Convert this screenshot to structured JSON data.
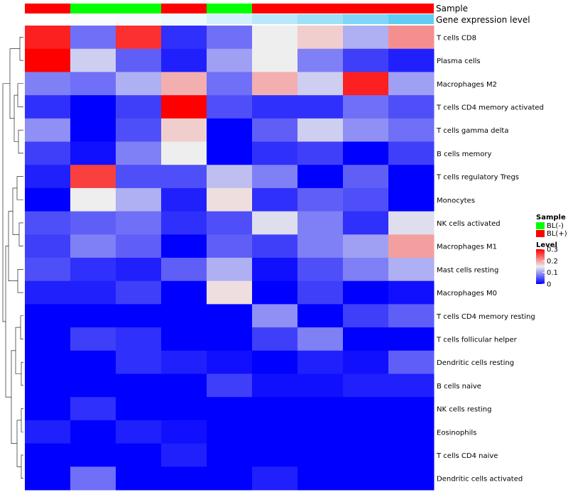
{
  "chart_data": {
    "type": "heatmap",
    "title": "",
    "annotation_rows": [
      {
        "name": "Sample",
        "label": "Sample"
      },
      {
        "name": "Gene expression level",
        "label": "Gene expression level"
      }
    ],
    "columns": [
      {
        "id": "S1",
        "sample": "BL(+)",
        "expression": 0.0
      },
      {
        "id": "S2",
        "sample": "BL(-)",
        "expression": 0.03
      },
      {
        "id": "S3",
        "sample": "BL(-)",
        "expression": 0.06
      },
      {
        "id": "S4",
        "sample": "BL(+)",
        "expression": 0.1
      },
      {
        "id": "S5",
        "sample": "BL(-)",
        "expression": 0.25
      },
      {
        "id": "S6",
        "sample": "BL(+)",
        "expression": 0.4
      },
      {
        "id": "S7",
        "sample": "BL(+)",
        "expression": 0.55
      },
      {
        "id": "S8",
        "sample": "BL(+)",
        "expression": 0.72
      },
      {
        "id": "S9",
        "sample": "BL(+)",
        "expression": 0.9
      }
    ],
    "rows": [
      "T cells CD8",
      "Plasma cells",
      "Macrophages M2",
      "T cells CD4 memory activated",
      "T cells gamma delta",
      "B cells memory",
      "T cells regulatory  Tregs",
      "Monocytes",
      "NK cells activated",
      "Macrophages M1",
      "Mast cells resting",
      "Macrophages M0",
      "T cells CD4 memory resting",
      "T cells follicular helper",
      "Dendritic cells resting",
      "B cells naive",
      "NK cells resting",
      "Eosinophils",
      "T cells CD4 naive",
      "Dendritic cells activated"
    ],
    "values": [
      [
        0.28,
        0.07,
        0.27,
        0.03,
        0.07,
        0.15,
        0.17,
        0.11,
        0.21
      ],
      [
        0.3,
        0.13,
        0.06,
        0.02,
        0.1,
        0.15,
        0.08,
        0.04,
        0.02
      ],
      [
        0.08,
        0.07,
        0.11,
        0.19,
        0.07,
        0.19,
        0.13,
        0.28,
        0.1
      ],
      [
        0.03,
        0.0,
        0.04,
        0.3,
        0.05,
        0.03,
        0.03,
        0.07,
        0.05
      ],
      [
        0.09,
        0.0,
        0.05,
        0.17,
        0.0,
        0.06,
        0.13,
        0.09,
        0.07
      ],
      [
        0.04,
        0.01,
        0.08,
        0.15,
        0.0,
        0.03,
        0.04,
        0.0,
        0.04
      ],
      [
        0.02,
        0.26,
        0.05,
        0.05,
        0.12,
        0.08,
        0.0,
        0.06,
        0.0
      ],
      [
        0.0,
        0.15,
        0.11,
        0.02,
        0.16,
        0.03,
        0.06,
        0.05,
        0.0
      ],
      [
        0.05,
        0.06,
        0.07,
        0.03,
        0.05,
        0.14,
        0.08,
        0.03,
        0.14
      ],
      [
        0.04,
        0.08,
        0.06,
        0.0,
        0.06,
        0.04,
        0.08,
        0.1,
        0.2
      ],
      [
        0.05,
        0.03,
        0.02,
        0.06,
        0.11,
        0.01,
        0.05,
        0.08,
        0.11
      ],
      [
        0.02,
        0.02,
        0.04,
        0.0,
        0.16,
        0.0,
        0.04,
        0.0,
        0.01
      ],
      [
        0.0,
        0.0,
        0.0,
        0.0,
        0.0,
        0.09,
        0.0,
        0.04,
        0.06
      ],
      [
        0.0,
        0.04,
        0.03,
        0.0,
        0.0,
        0.04,
        0.08,
        0.0,
        0.0
      ],
      [
        0.0,
        0.0,
        0.03,
        0.02,
        0.01,
        0.0,
        0.02,
        0.01,
        0.06
      ],
      [
        0.0,
        0.0,
        0.0,
        0.0,
        0.04,
        0.01,
        0.01,
        0.02,
        0.02
      ],
      [
        0.0,
        0.03,
        0.0,
        0.0,
        0.0,
        0.0,
        0.0,
        0.0,
        0.0
      ],
      [
        0.02,
        0.0,
        0.02,
        0.01,
        0.0,
        0.0,
        0.0,
        0.0,
        0.0
      ],
      [
        0.0,
        0.0,
        0.0,
        0.02,
        0.0,
        0.0,
        0.0,
        0.0,
        0.0
      ],
      [
        0.0,
        0.07,
        0.0,
        0.0,
        0.0,
        0.02,
        0.0,
        0.0,
        0.0
      ]
    ],
    "color_scale": {
      "min": 0,
      "max": 0.3,
      "stops": [
        {
          "value": 0.0,
          "color": "#0000ff"
        },
        {
          "value": 0.15,
          "color": "#eeeeee"
        },
        {
          "value": 0.3,
          "color": "#ff0000"
        }
      ]
    },
    "sample_colors": {
      "BL(-)": "#00ff00",
      "BL(+)": "#ff0000"
    },
    "expression_colors": {
      "low": "#ffffff",
      "high": "#4fc6f2"
    },
    "legend": {
      "sample_title": "Sample",
      "sample_entries": [
        "BL(-)",
        "BL(+)"
      ],
      "level_title": "Level",
      "level_ticks": [
        "0.3",
        "0.2",
        "0.1",
        "0"
      ],
      "level_tick_values": [
        0.3,
        0.2,
        0.1,
        0
      ],
      "placement": "right"
    },
    "dendrogram": "rows"
  }
}
